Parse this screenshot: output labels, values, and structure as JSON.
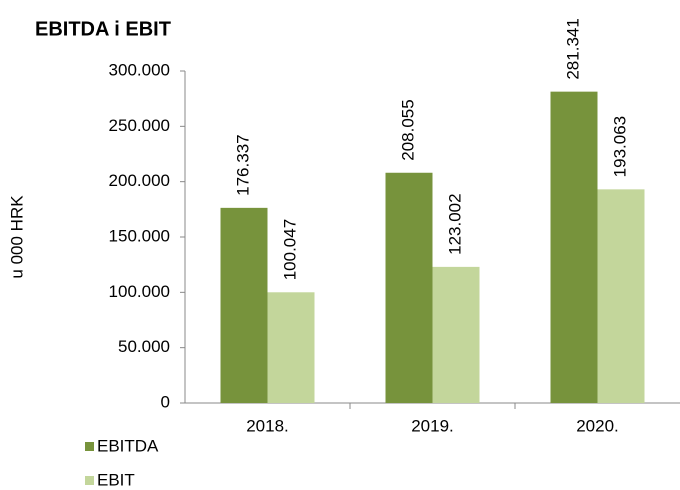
{
  "chart_data": {
    "type": "bar",
    "title": "EBITDA i EBIT",
    "y_label": "u 000 HRK",
    "categories": [
      "2018.",
      "2019.",
      "2020."
    ],
    "series": [
      {
        "name": "EBITDA",
        "color": "#77933c",
        "values": [
          176337,
          208055,
          281341
        ],
        "value_labels": [
          "176.337",
          "208.055",
          "281.341"
        ]
      },
      {
        "name": "EBIT",
        "color": "#c3d69b",
        "values": [
          100047,
          123002,
          193063
        ],
        "value_labels": [
          "100.047",
          "123.002",
          "193.063"
        ]
      }
    ],
    "ylim": [
      0,
      300000
    ],
    "yticks": [
      0,
      {
        "value": 50000,
        "label": "50.000"
      },
      {
        "value": 100000,
        "label": "100.000"
      },
      {
        "value": 150000,
        "label": "150.000"
      },
      {
        "value": 200000,
        "label": "200.000"
      },
      {
        "value": 250000,
        "label": "250.000"
      },
      {
        "value": 300000,
        "label": "300.000"
      }
    ],
    "grid": false,
    "legend": "bottom-left"
  }
}
